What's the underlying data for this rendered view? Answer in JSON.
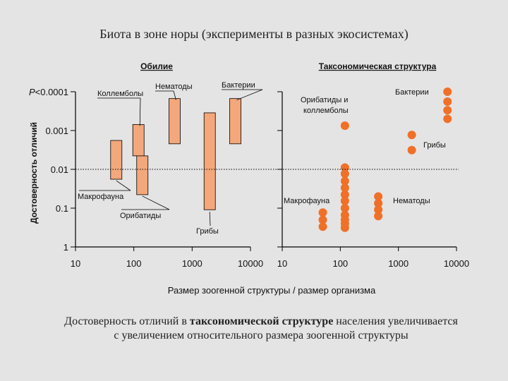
{
  "title": "Биота в зоне норы (эксперименты в разных экосистемах)",
  "caption": {
    "line1_before": "Достоверность отличий в ",
    "line1_bold": "таксономической структуре",
    "line1_after": " населения увеличивается",
    "line2": "с увеличением относительного размера зоогенной структуры"
  },
  "chart_data": [
    {
      "type": "bar",
      "title": "Обилие",
      "ylabel": "Достоверность отличий",
      "xlabel": "Размер зоогенной структуры / размер организма",
      "x_scale": "log",
      "y_scale": "log",
      "xlim": [
        10,
        10000
      ],
      "ylim": [
        1,
        0.0001
      ],
      "x_ticks": [
        "10",
        "100",
        "1000",
        "10000"
      ],
      "y_ticks": [
        "P<0.0001",
        "0.001",
        "0.01",
        "0.1",
        "1"
      ],
      "reference_line_p": 0.01,
      "bar_color": "#f4a77a",
      "bars": [
        {
          "label": "Макрофауна",
          "x": 50,
          "p_range": [
            0.0018,
            0.018
          ]
        },
        {
          "label": "Коллемболы",
          "x": 120,
          "p_range": [
            0.0007,
            0.0045
          ]
        },
        {
          "label": "Орибатиды",
          "x": 140,
          "p_range": [
            0.0045,
            0.045
          ]
        },
        {
          "label": "Нематоды",
          "x": 500,
          "p_range": [
            0.00015,
            0.0022
          ]
        },
        {
          "label": "Грибы",
          "x": 2000,
          "p_range": [
            0.00035,
            0.11
          ]
        },
        {
          "label": "Бактерии",
          "x": 5500,
          "p_range": [
            0.00015,
            0.0022
          ]
        }
      ]
    },
    {
      "type": "scatter",
      "title": "Таксономическая структура",
      "x_scale": "log",
      "xlim": [
        10,
        10000
      ],
      "x_ticks": [
        "10",
        "100",
        "1000",
        "10000"
      ],
      "point_color": "#f07028",
      "groups": [
        {
          "label": "Макрофауна",
          "x": 50,
          "p": [
            0.13,
            0.2,
            0.3
          ]
        },
        {
          "label": "Орибатиды и коллемболы",
          "x": 120,
          "p": [
            0.00075,
            0.009,
            0.013,
            0.02,
            0.03,
            0.045,
            0.065,
            0.1,
            0.15,
            0.2,
            0.25,
            0.32
          ]
        },
        {
          "label": "Нематоды",
          "x": 450,
          "p": [
            0.05,
            0.075,
            0.11,
            0.16
          ]
        },
        {
          "label": "Грибы",
          "x": 1700,
          "p": [
            0.0013,
            0.0032
          ]
        },
        {
          "label": "Бактерии",
          "x": 7000,
          "p": [
            0.0001,
            0.00018,
            0.0003,
            0.0005
          ]
        }
      ]
    }
  ]
}
